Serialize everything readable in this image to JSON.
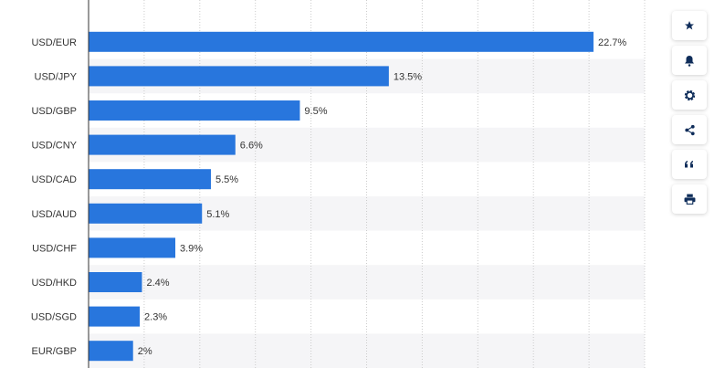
{
  "chart_data": {
    "type": "bar",
    "orientation": "horizontal",
    "categories": [
      "USD/EUR",
      "USD/JPY",
      "USD/GBP",
      "USD/CNY",
      "USD/CAD",
      "USD/AUD",
      "USD/CHF",
      "USD/HKD",
      "USD/SGD",
      "EUR/GBP"
    ],
    "values": [
      22.7,
      13.5,
      9.5,
      6.6,
      5.5,
      5.1,
      3.9,
      2.4,
      2.3,
      2
    ],
    "value_labels": [
      "22.7%",
      "13.5%",
      "9.5%",
      "6.6%",
      "5.5%",
      "5.1%",
      "3.9%",
      "2.4%",
      "2.3%",
      "2%"
    ],
    "xlim": [
      0,
      25
    ],
    "grid": true,
    "title": "",
    "xlabel": "",
    "ylabel": "",
    "colors": {
      "bar": "#2876dd",
      "stripe": "#f5f5f7",
      "grid": "#cccccc",
      "axis": "#333333"
    }
  },
  "toolbar": {
    "buttons": [
      {
        "name": "favorite-button",
        "icon": "star-icon"
      },
      {
        "name": "notification-button",
        "icon": "bell-icon"
      },
      {
        "name": "settings-button",
        "icon": "gear-icon"
      },
      {
        "name": "share-button",
        "icon": "share-icon"
      },
      {
        "name": "cite-button",
        "icon": "quote-icon"
      },
      {
        "name": "print-button",
        "icon": "printer-icon"
      }
    ]
  }
}
